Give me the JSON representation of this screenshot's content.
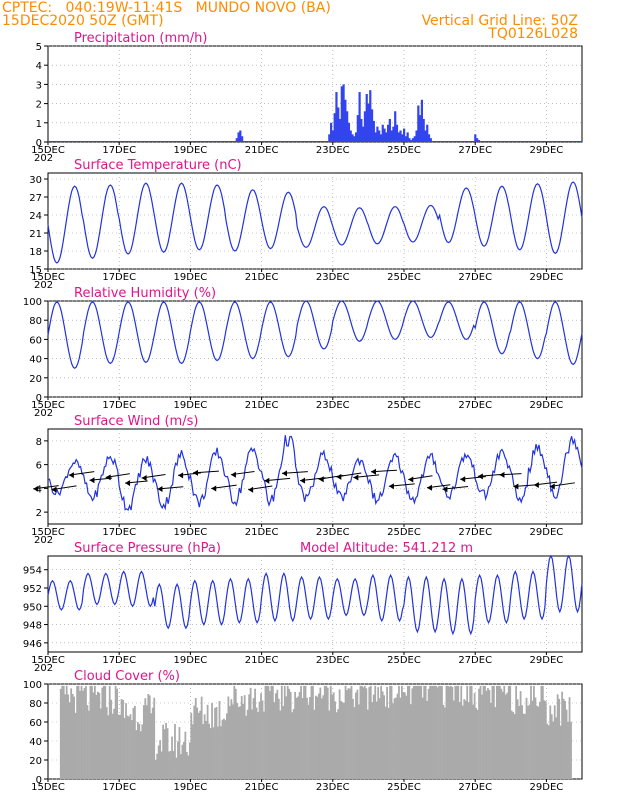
{
  "header": {
    "line1": "CPTEC:   040:19W-11:41S   MUNDO NOVO (BA)",
    "line2": "15DEC2020 50Z (GMT)",
    "line3": "Vertical Grid Line: 50Z",
    "line4": "TQ0126L028"
  },
  "colors": {
    "header": "#ff8c00",
    "title": "#e0158c",
    "line": "#2233dd",
    "bar": "#3344ee",
    "cloud": "#aaaaaa",
    "grid": "#999999"
  },
  "x_ticks": [
    "15DEC",
    "17DEC",
    "19DEC",
    "21DEC",
    "23DEC",
    "25DEC",
    "27DEC",
    "29DEC"
  ],
  "x_tick_day_index": [
    0,
    2,
    4,
    6,
    8,
    10,
    12,
    14
  ],
  "x_tick_suffix": "202",
  "chart_data": [
    {
      "id": "precip",
      "type": "bar",
      "title": "Precipitation (mm/h)",
      "ylim": [
        0,
        5
      ],
      "yticks": [
        0,
        1,
        2,
        3,
        4,
        5
      ],
      "grid": true,
      "x_days": [
        5.3,
        5.35,
        5.4,
        5.45,
        7.9,
        7.95,
        8.0,
        8.05,
        8.1,
        8.15,
        8.2,
        8.25,
        8.3,
        8.35,
        8.4,
        8.45,
        8.5,
        8.55,
        8.6,
        8.65,
        8.7,
        8.75,
        8.8,
        8.85,
        8.9,
        8.95,
        9.0,
        9.05,
        9.1,
        9.15,
        9.2,
        9.25,
        9.3,
        9.35,
        9.4,
        9.45,
        9.5,
        9.55,
        9.6,
        9.65,
        9.7,
        9.75,
        9.8,
        9.85,
        9.9,
        9.95,
        10.0,
        10.05,
        10.1,
        10.15,
        10.2,
        10.25,
        10.3,
        10.35,
        10.4,
        10.45,
        10.5,
        10.55,
        10.6,
        10.65,
        10.7,
        10.75,
        12.0,
        12.05,
        12.1
      ],
      "values": [
        0.2,
        0.5,
        0.6,
        0.3,
        0.4,
        1.0,
        0.6,
        1.5,
        2.6,
        1.8,
        1.2,
        2.9,
        3.0,
        2.2,
        1.6,
        1.0,
        0.6,
        0.4,
        0.3,
        0.5,
        1.4,
        2.6,
        1.2,
        0.8,
        1.6,
        2.5,
        2.0,
        2.7,
        1.7,
        1.1,
        0.5,
        0.8,
        0.6,
        0.4,
        0.9,
        0.7,
        0.5,
        0.9,
        1.2,
        0.6,
        0.8,
        1.6,
        0.9,
        0.5,
        0.6,
        0.4,
        0.7,
        0.3,
        0.5,
        0.2,
        0.1,
        0.2,
        0.3,
        0.6,
        1.9,
        1.4,
        2.2,
        1.2,
        0.6,
        0.9,
        0.4,
        0.2,
        0.4,
        0.2,
        0.1
      ]
    },
    {
      "id": "temp",
      "type": "line",
      "title": "Surface Temperature (nC)",
      "ylim": [
        15,
        31
      ],
      "yticks": [
        15,
        18,
        21,
        24,
        27,
        30
      ],
      "grid": true,
      "daily_min": [
        16.0,
        16.8,
        17.5,
        17.8,
        18.2,
        18.0,
        18.4,
        18.6,
        19.0,
        19.2,
        19.5,
        19.4,
        18.8,
        18.2,
        17.6
      ],
      "daily_max": [
        28.8,
        29.0,
        29.3,
        29.3,
        29.0,
        28.2,
        27.8,
        25.4,
        25.2,
        25.4,
        25.6,
        28.5,
        28.8,
        29.2,
        29.5
      ]
    },
    {
      "id": "rh",
      "type": "line",
      "title": "Relative Humidity (%)",
      "ylim": [
        0,
        100
      ],
      "yticks": [
        0,
        20,
        40,
        60,
        80,
        100
      ],
      "grid": true,
      "daily_min": [
        30,
        35,
        36,
        35,
        38,
        40,
        42,
        50,
        58,
        60,
        62,
        60,
        45,
        40,
        34
      ],
      "daily_max": [
        99,
        99,
        99,
        99,
        99,
        99,
        99,
        100,
        100,
        100,
        100,
        99,
        99,
        99,
        99
      ]
    },
    {
      "id": "wind",
      "type": "line",
      "title": "Surface Wind (m/s)",
      "ylim": [
        1,
        9
      ],
      "yticks": [
        2,
        4,
        6,
        8
      ],
      "grid": true,
      "daily_min": [
        3.6,
        3.2,
        2.4,
        2.6,
        2.8,
        3.0,
        2.8,
        3.2,
        3.2,
        3.0,
        3.1,
        3.4,
        3.4,
        3.0,
        3.6
      ],
      "daily_max": [
        6.2,
        6.6,
        6.4,
        6.8,
        7.0,
        7.2,
        8.2,
        6.8,
        6.4,
        6.6,
        6.6,
        6.8,
        7.0,
        7.4,
        8.2
      ]
    },
    {
      "id": "pressure",
      "type": "line",
      "title": "Surface Pressure (hPa)",
      "subtitle": "Model Altitude: 541.212 m",
      "ylim": [
        945,
        955.5
      ],
      "yticks": [
        946,
        948,
        950,
        952,
        954
      ],
      "grid": true,
      "daily_min": [
        949.6,
        950.2,
        950.0,
        947.6,
        948.0,
        948.2,
        948.4,
        948.6,
        949.0,
        948.4,
        947.2,
        947.0,
        948.2,
        948.6,
        949.4
      ],
      "daily_max": [
        952.8,
        953.6,
        953.8,
        952.4,
        952.8,
        953.0,
        953.6,
        953.2,
        953.0,
        953.4,
        953.2,
        953.0,
        953.4,
        953.8,
        955.6
      ]
    },
    {
      "id": "cloud",
      "type": "area",
      "title": "Cloud Cover (%)",
      "ylim": [
        0,
        100
      ],
      "yticks": [
        0,
        20,
        40,
        60,
        80,
        100
      ],
      "grid": true,
      "daily_mean": [
        88,
        85,
        70,
        40,
        70,
        85,
        90,
        92,
        90,
        94,
        95,
        95,
        92,
        88,
        75
      ]
    }
  ]
}
